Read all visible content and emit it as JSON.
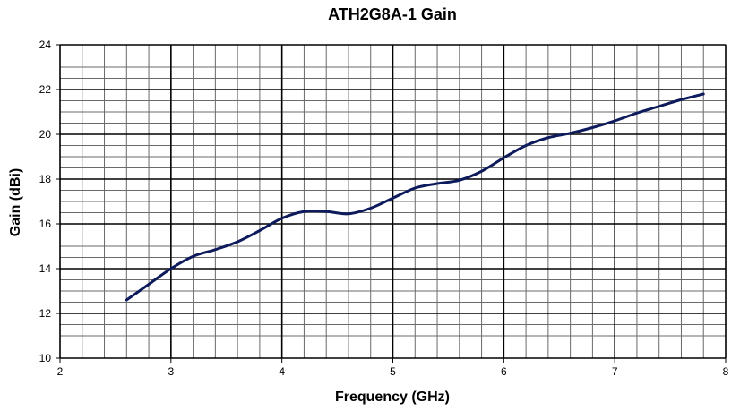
{
  "chart_data": {
    "type": "line",
    "title": "ATH2G8A-1 Gain",
    "xlabel": "Frequency (GHz)",
    "ylabel": "Gain (dBi)",
    "xlim": [
      2,
      8
    ],
    "ylim": [
      10,
      24
    ],
    "x_ticks": [
      2,
      3,
      4,
      5,
      6,
      7,
      8
    ],
    "y_ticks": [
      10,
      12,
      14,
      16,
      18,
      20,
      22,
      24
    ],
    "x_minor_step": 0.2,
    "y_minor_step": 0.5,
    "grid": true,
    "legend": "none",
    "line_color": "#0d1a5c",
    "series": [
      {
        "x": [
          2.6,
          2.8,
          3.0,
          3.2,
          3.4,
          3.6,
          3.8,
          4.0,
          4.2,
          4.4,
          4.6,
          4.8,
          5.0,
          5.2,
          5.4,
          5.6,
          5.8,
          6.0,
          6.2,
          6.4,
          6.6,
          6.8,
          7.0,
          7.2,
          7.4,
          7.6,
          7.8
        ],
        "values": [
          12.6,
          13.3,
          14.0,
          14.55,
          14.85,
          15.2,
          15.7,
          16.25,
          16.55,
          16.55,
          16.45,
          16.7,
          17.15,
          17.6,
          17.8,
          17.95,
          18.35,
          18.95,
          19.5,
          19.85,
          20.05,
          20.3,
          20.6,
          20.95,
          21.25,
          21.55,
          21.8
        ]
      }
    ]
  }
}
